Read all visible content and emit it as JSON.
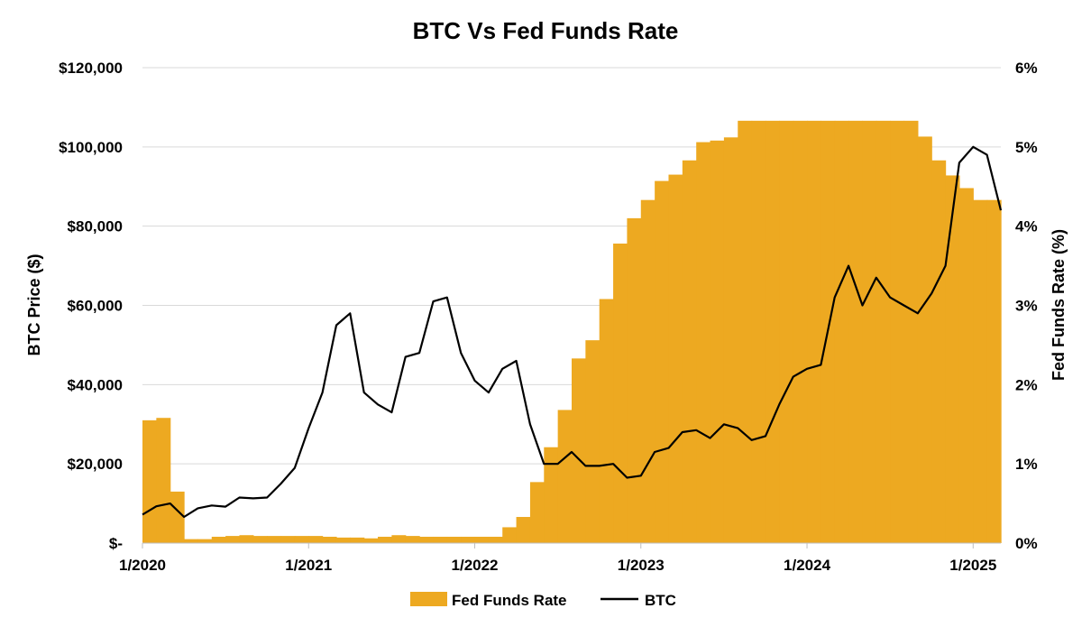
{
  "chart_data": {
    "type": "line",
    "title": "BTC Vs Fed Funds Rate",
    "x_axis": {
      "tick_labels": [
        "1/2020",
        "1/2021",
        "1/2022",
        "1/2023",
        "1/2024",
        "1/2025"
      ],
      "range": [
        "2020-01",
        "2025-03"
      ]
    },
    "y_left": {
      "label": "BTC Price ($)",
      "range": [
        0,
        120000
      ],
      "tick_labels": [
        "$-",
        "$20,000",
        "$40,000",
        "$60,000",
        "$80,000",
        "$100,000",
        "$120,000"
      ],
      "tick_values": [
        0,
        20000,
        40000,
        60000,
        80000,
        100000,
        120000
      ]
    },
    "y_right": {
      "label": "Fed Funds Rate (%)",
      "range": [
        0,
        6
      ],
      "tick_labels": [
        "0%",
        "1%",
        "2%",
        "3%",
        "4%",
        "5%",
        "6%"
      ],
      "tick_values": [
        0,
        1,
        2,
        3,
        4,
        5,
        6
      ]
    },
    "grid": "horizontal",
    "legend": {
      "placement": "bottom",
      "entries": [
        "Fed Funds Rate",
        "BTC"
      ]
    },
    "colors": {
      "fed": "#EDA921",
      "btc": "#000000",
      "grid": "#D9D9D9"
    },
    "series": [
      {
        "name": "Fed Funds Rate",
        "type": "area-step",
        "axis": "right",
        "x": [
          "2020-01",
          "2020-02",
          "2020-03",
          "2020-04",
          "2020-05",
          "2020-06",
          "2020-07",
          "2020-08",
          "2020-09",
          "2020-10",
          "2020-11",
          "2020-12",
          "2021-01",
          "2021-02",
          "2021-03",
          "2021-04",
          "2021-05",
          "2021-06",
          "2021-07",
          "2021-08",
          "2021-09",
          "2021-10",
          "2021-11",
          "2021-12",
          "2022-01",
          "2022-02",
          "2022-03",
          "2022-04",
          "2022-05",
          "2022-06",
          "2022-07",
          "2022-08",
          "2022-09",
          "2022-10",
          "2022-11",
          "2022-12",
          "2023-01",
          "2023-02",
          "2023-03",
          "2023-04",
          "2023-05",
          "2023-06",
          "2023-07",
          "2023-08",
          "2023-09",
          "2023-10",
          "2023-11",
          "2023-12",
          "2024-01",
          "2024-02",
          "2024-03",
          "2024-04",
          "2024-05",
          "2024-06",
          "2024-07",
          "2024-08",
          "2024-09",
          "2024-10",
          "2024-11",
          "2024-12",
          "2025-01",
          "2025-02",
          "2025-03"
        ],
        "values": [
          1.55,
          1.58,
          0.65,
          0.05,
          0.05,
          0.08,
          0.09,
          0.1,
          0.09,
          0.09,
          0.09,
          0.09,
          0.09,
          0.08,
          0.07,
          0.07,
          0.06,
          0.08,
          0.1,
          0.09,
          0.08,
          0.08,
          0.08,
          0.08,
          0.08,
          0.08,
          0.2,
          0.33,
          0.77,
          1.21,
          1.68,
          2.33,
          2.56,
          3.08,
          3.78,
          4.1,
          4.33,
          4.57,
          4.65,
          4.83,
          5.06,
          5.08,
          5.12,
          5.33,
          5.33,
          5.33,
          5.33,
          5.33,
          5.33,
          5.33,
          5.33,
          5.33,
          5.33,
          5.33,
          5.33,
          5.33,
          5.13,
          4.83,
          4.64,
          4.48,
          4.33,
          4.33,
          4.33
        ]
      },
      {
        "name": "BTC",
        "type": "line",
        "axis": "left",
        "x": [
          "2020-01",
          "2020-02",
          "2020-03",
          "2020-04",
          "2020-05",
          "2020-06",
          "2020-07",
          "2020-08",
          "2020-09",
          "2020-10",
          "2020-11",
          "2020-12",
          "2021-01",
          "2021-02",
          "2021-03",
          "2021-04",
          "2021-05",
          "2021-06",
          "2021-07",
          "2021-08",
          "2021-09",
          "2021-10",
          "2021-11",
          "2021-12",
          "2022-01",
          "2022-02",
          "2022-03",
          "2022-04",
          "2022-05",
          "2022-06",
          "2022-07",
          "2022-08",
          "2022-09",
          "2022-10",
          "2022-11",
          "2022-12",
          "2023-01",
          "2023-02",
          "2023-03",
          "2023-04",
          "2023-05",
          "2023-06",
          "2023-07",
          "2023-08",
          "2023-09",
          "2023-10",
          "2023-11",
          "2023-12",
          "2024-01",
          "2024-02",
          "2024-03",
          "2024-04",
          "2024-05",
          "2024-06",
          "2024-07",
          "2024-08",
          "2024-09",
          "2024-10",
          "2024-11",
          "2024-12",
          "2025-01",
          "2025-02",
          "2025-03"
        ],
        "values": [
          7200,
          9300,
          10000,
          6600,
          8800,
          9500,
          9200,
          11500,
          11300,
          11500,
          15000,
          19000,
          29000,
          38000,
          55000,
          58000,
          38000,
          35000,
          33000,
          47000,
          48000,
          61000,
          62000,
          48000,
          41000,
          38000,
          44000,
          46000,
          30000,
          20000,
          20000,
          23000,
          19500,
          19500,
          20000,
          16500,
          17000,
          23000,
          24000,
          28000,
          28500,
          26500,
          30000,
          29000,
          26000,
          27000,
          35000,
          42000,
          44000,
          45000,
          62000,
          70000,
          60000,
          67000,
          62000,
          60000,
          58000,
          63000,
          70000,
          96000,
          100000,
          98000,
          84000
        ]
      }
    ]
  }
}
